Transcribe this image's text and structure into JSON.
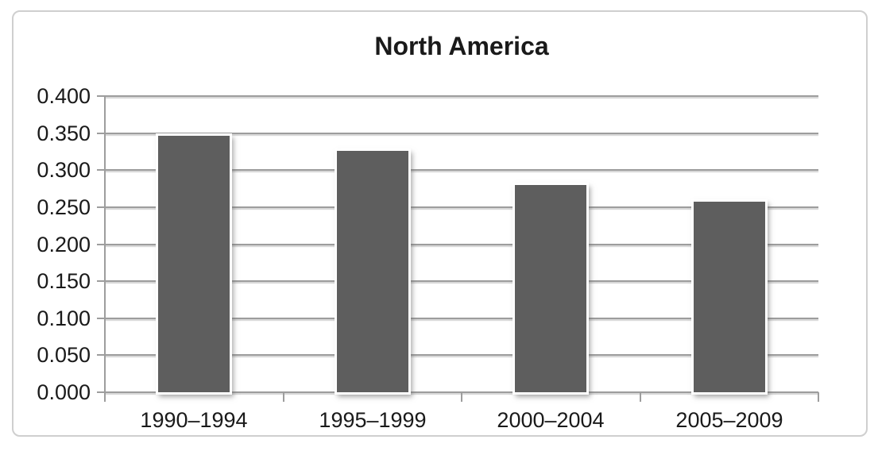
{
  "figure": {
    "title": "North America"
  },
  "chart_data": {
    "type": "bar",
    "title": "North America",
    "categories": [
      "1990–1994",
      "1995–1999",
      "2000–2004",
      "2005–2009"
    ],
    "values": [
      0.346,
      0.326,
      0.28,
      0.257
    ],
    "xlabel": "",
    "ylabel": "",
    "ylim": [
      0.0,
      0.4
    ],
    "ytick_step": 0.05,
    "ytick_labels": [
      "0.000",
      "0.050",
      "0.100",
      "0.150",
      "0.200",
      "0.250",
      "0.300",
      "0.350",
      "0.400"
    ],
    "grid": true,
    "legend_position": "none",
    "bar_color": "#5e5e5e",
    "gridline_color": "#9d9d9d",
    "axis_text_color": "#1a1a1a",
    "panel_border_color": "#cfcfcf"
  }
}
